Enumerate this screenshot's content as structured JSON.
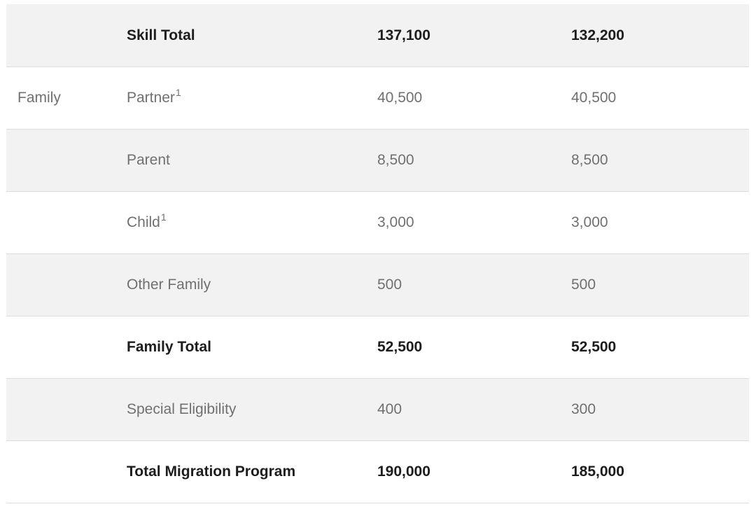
{
  "table": {
    "rows": [
      {
        "category": "",
        "subcategory": "Skill Total",
        "footnote": "",
        "year1": "137,100",
        "year2": "132,200",
        "total": true,
        "shaded": true
      },
      {
        "category": "Family",
        "subcategory": "Partner",
        "footnote": "1",
        "year1": "40,500",
        "year2": "40,500",
        "total": false,
        "shaded": false
      },
      {
        "category": "",
        "subcategory": "Parent",
        "footnote": "",
        "year1": "8,500",
        "year2": "8,500",
        "total": false,
        "shaded": true
      },
      {
        "category": "",
        "subcategory": "Child",
        "footnote": "1",
        "year1": "3,000",
        "year2": "3,000",
        "total": false,
        "shaded": false
      },
      {
        "category": "",
        "subcategory": "Other Family",
        "footnote": "",
        "year1": "500",
        "year2": "500",
        "total": false,
        "shaded": true
      },
      {
        "category": "",
        "subcategory": "Family Total",
        "footnote": "",
        "year1": "52,500",
        "year2": "52,500",
        "total": true,
        "shaded": false
      },
      {
        "category": "",
        "subcategory": "Special Eligibility",
        "footnote": "",
        "year1": "400",
        "year2": "300",
        "total": false,
        "shaded": true
      },
      {
        "category": "",
        "subcategory": "Total Migration Program",
        "footnote": "",
        "year1": "190,000",
        "year2": "185,000",
        "total": true,
        "shaded": false
      }
    ]
  },
  "colors": {
    "row_shade": "#f2f2f2",
    "row_plain": "#ffffff",
    "row_divider": "#dcdcdc",
    "text_regular": "#707070",
    "text_total": "#1d1d1d"
  }
}
